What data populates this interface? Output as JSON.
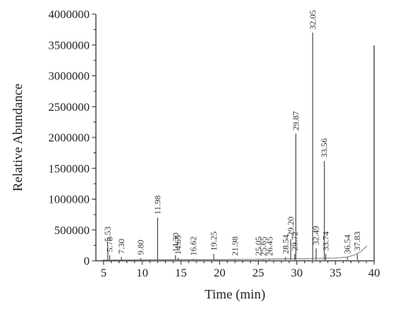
{
  "chart_data": {
    "type": "line",
    "xlabel": "Time (min)",
    "ylabel": "Relative Abundance",
    "xlim": [
      4,
      40
    ],
    "ylim": [
      0,
      4000000
    ],
    "x_ticks": [
      5,
      10,
      15,
      20,
      25,
      30,
      35,
      40
    ],
    "x_tick_labels": [
      "5",
      "10",
      "15",
      "20",
      "25",
      "30",
      "35",
      "40"
    ],
    "y_ticks": [
      0,
      500000,
      1000000,
      1500000,
      2000000,
      2500000,
      3000000,
      3500000,
      4000000
    ],
    "y_tick_labels": [
      "0",
      "500000",
      "1000000",
      "1500000",
      "2000000",
      "2500000",
      "3000000",
      "3500000",
      "4000000"
    ],
    "grid": false,
    "peaks": [
      {
        "label": "5.53",
        "x": 5.53,
        "y": 260000
      },
      {
        "label": "5.78",
        "x": 5.78,
        "y": 90000
      },
      {
        "label": "7.30",
        "x": 7.3,
        "y": 60000
      },
      {
        "label": "9.80",
        "x": 9.8,
        "y": 45000
      },
      {
        "label": "11.98",
        "x": 11.98,
        "y": 700000
      },
      {
        "label": "14.30",
        "x": 14.3,
        "y": 90000
      },
      {
        "label": "14.65",
        "x": 14.65,
        "y": 50000
      },
      {
        "label": "16.62",
        "x": 16.62,
        "y": 30000
      },
      {
        "label": "19.25",
        "x": 19.25,
        "y": 110000
      },
      {
        "label": "21.98",
        "x": 21.98,
        "y": 30000
      },
      {
        "label": "25.05",
        "x": 25.05,
        "y": 30000
      },
      {
        "label": "25.65",
        "x": 25.65,
        "y": 25000
      },
      {
        "label": "26.45",
        "x": 26.45,
        "y": 25000
      },
      {
        "label": "28.54",
        "x": 28.54,
        "y": 60000
      },
      {
        "label": "29.20",
        "x": 29.2,
        "y": 350000
      },
      {
        "label": "29.72",
        "x": 29.72,
        "y": 110000
      },
      {
        "label": "29.87",
        "x": 29.87,
        "y": 2060000
      },
      {
        "label": "32.05",
        "x": 32.05,
        "y": 3700000
      },
      {
        "label": "32.49",
        "x": 32.49,
        "y": 200000
      },
      {
        "label": "33.56",
        "x": 33.56,
        "y": 1620000
      },
      {
        "label": "33.74",
        "x": 33.74,
        "y": 110000
      },
      {
        "label": "36.54",
        "x": 36.54,
        "y": 60000
      },
      {
        "label": "37.83",
        "x": 37.83,
        "y": 110000
      }
    ],
    "baseline": [
      [
        4.8,
        10000
      ],
      [
        10,
        15000
      ],
      [
        15,
        20000
      ],
      [
        20,
        20000
      ],
      [
        25,
        25000
      ],
      [
        28,
        30000
      ],
      [
        31,
        35000
      ],
      [
        33,
        40000
      ],
      [
        35,
        45000
      ],
      [
        36.5,
        60000
      ],
      [
        37.5,
        95000
      ],
      [
        38.3,
        150000
      ],
      [
        38.8,
        210000
      ],
      [
        39.1,
        240000
      ]
    ],
    "colors": {
      "trace": "#8a8a8a",
      "peak": "#555555",
      "axis": "#333333"
    }
  }
}
